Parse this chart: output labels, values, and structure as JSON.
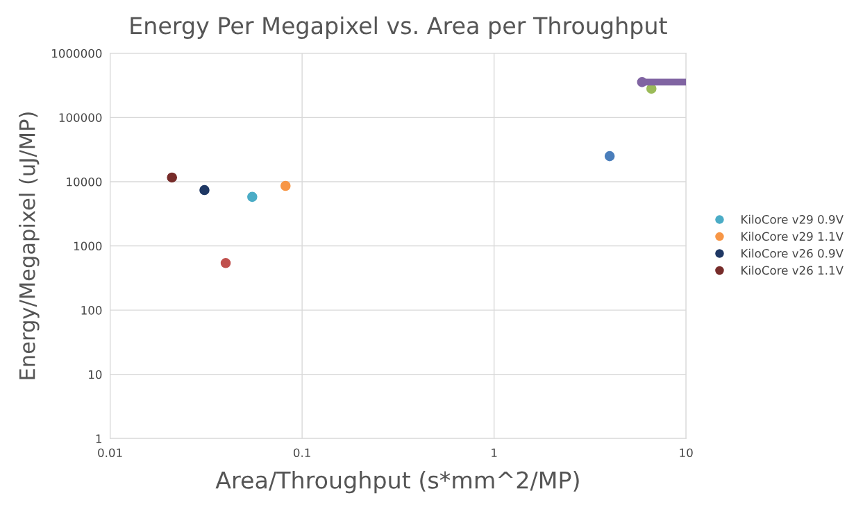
{
  "chart_data": {
    "type": "scatter",
    "title": "Energy Per Megapixel vs. Area per Throughput",
    "xlabel": "Area/Throughput (s*mm^2/MP)",
    "ylabel": "Energy/Megapixel (uJ/MP)",
    "log": "xy",
    "grid": true,
    "legend": "right",
    "marker": "circle",
    "xlim": [
      0.01,
      10
    ],
    "xticks": [
      0.01,
      0.1,
      1,
      10
    ],
    "ylim": [
      1,
      1000000
    ],
    "yticks": [
      1,
      10,
      100,
      1000,
      10000,
      100000,
      1000000
    ],
    "series": [
      {
        "color": "#4a7ebb",
        "x": [
          4.0
        ],
        "values": [
          25000
        ]
      },
      {
        "color": "#c0504d",
        "x": [
          0.04
        ],
        "values": [
          540
        ]
      },
      {
        "color": "#9bbb59",
        "x": [
          6.6
        ],
        "values": [
          280000
        ]
      },
      {
        "type": "line",
        "color": "#8064a2",
        "x": [
          5.9,
          10
        ],
        "values": [
          355000,
          355000
        ]
      },
      {
        "name": "KiloCore v29 0.9V",
        "color": "#4bacc6",
        "x": [
          0.055
        ],
        "values": [
          5800
        ]
      },
      {
        "name": "KiloCore v29 1.1V",
        "color": "#f79646",
        "x": [
          0.082
        ],
        "values": [
          8600
        ]
      },
      {
        "name": "KiloCore v26 0.9V",
        "color": "#1f3864",
        "x": [
          0.031
        ],
        "values": [
          7400
        ]
      },
      {
        "name": "KiloCore v26 1.1V",
        "color": "#772c2a",
        "x": [
          0.021
        ],
        "values": [
          11600
        ]
      }
    ]
  }
}
